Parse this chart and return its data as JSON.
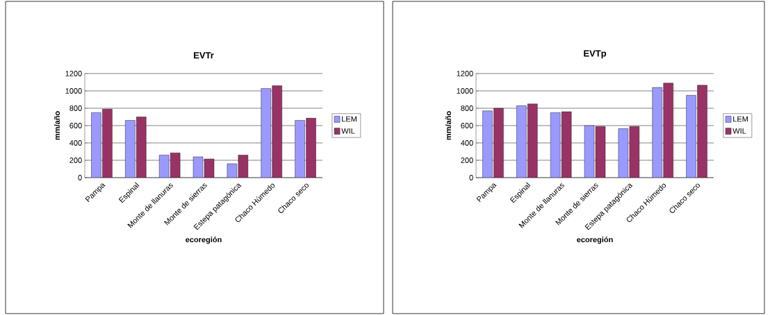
{
  "chart_data": [
    {
      "type": "bar",
      "title": "EVTr",
      "xlabel": "ecoregión",
      "ylabel": "mm/año",
      "categories": [
        "Pampa",
        "Espinal",
        "Monte de llanuras",
        "Monte de sierras",
        "Estepa patagónica",
        "Chaco Húmedo",
        "Chaco seco"
      ],
      "series": [
        {
          "name": "LEM",
          "color": "#9999ff",
          "values": [
            750,
            660,
            260,
            240,
            160,
            1030,
            660
          ]
        },
        {
          "name": "WIL",
          "color": "#993366",
          "values": [
            790,
            700,
            285,
            215,
            260,
            1060,
            685
          ]
        }
      ],
      "ylim": [
        0,
        1200
      ],
      "yticks": [
        0,
        200,
        400,
        600,
        800,
        1000,
        1200
      ],
      "grid": "y",
      "legend": "right"
    },
    {
      "type": "bar",
      "title": "EVTp",
      "xlabel": "ecoregión",
      "ylabel": "mm/año",
      "categories": [
        "Pampa",
        "Espinal",
        "Monte de llanuras",
        "Monte de sierras",
        "Estepa patagónica",
        "Chaco Húmedo",
        "Chaco seco"
      ],
      "series": [
        {
          "name": "LEM",
          "color": "#9999ff",
          "values": [
            770,
            830,
            750,
            600,
            565,
            1040,
            950
          ]
        },
        {
          "name": "WIL",
          "color": "#993366",
          "values": [
            800,
            850,
            760,
            590,
            590,
            1090,
            1065
          ]
        }
      ],
      "ylim": [
        0,
        1200
      ],
      "yticks": [
        0,
        200,
        400,
        600,
        800,
        1000,
        1200
      ],
      "grid": "y",
      "legend": "right"
    }
  ]
}
